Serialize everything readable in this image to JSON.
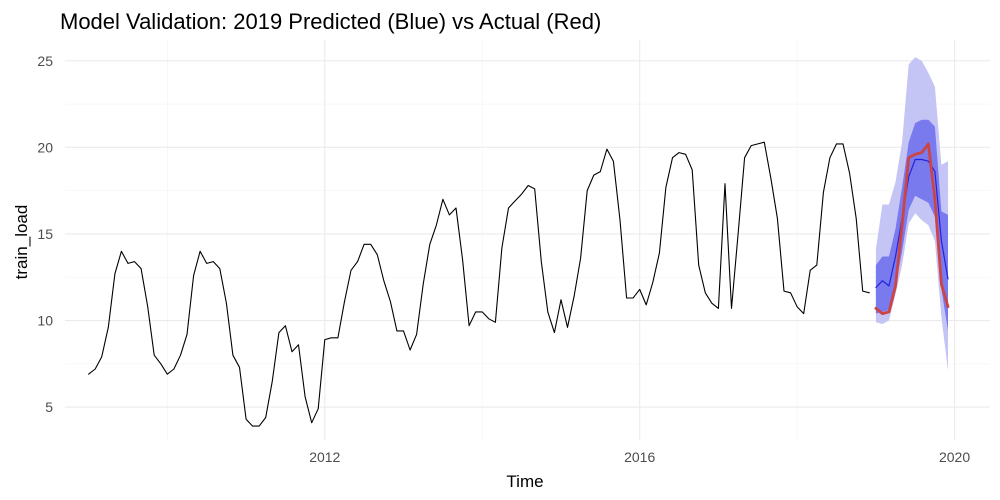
{
  "chart_data": {
    "type": "line",
    "title": "Model Validation: 2019 Predicted (Blue) vs Actual (Red)",
    "xlabel": "Time",
    "ylabel": "train_load",
    "xlim": [
      2008.7,
      2020.45
    ],
    "ylim": [
      3.1,
      26.2
    ],
    "x_ticks": [
      2012,
      2016,
      2020
    ],
    "y_ticks": [
      5,
      10,
      15,
      20,
      25
    ],
    "grid": true,
    "legend": "none",
    "colors": {
      "history": "#000000",
      "actual": "#cc4444",
      "forecast_line": "#2222dd",
      "band_80": "#7a7aef",
      "band_95": "#c4c4f5"
    },
    "series": [
      {
        "role": "history",
        "x_start": 2009.0,
        "step": 0.083333,
        "values": [
          6.9,
          7.2,
          7.9,
          9.6,
          12.7,
          14.0,
          13.3,
          13.4,
          13.0,
          10.8,
          8.0,
          7.5,
          6.9,
          7.2,
          8.0,
          9.2,
          12.6,
          14.0,
          13.3,
          13.4,
          13.0,
          11.0,
          8.0,
          7.3,
          4.3,
          3.9,
          3.9,
          4.4,
          6.5,
          9.3,
          9.7,
          8.2,
          8.6,
          5.6,
          4.1,
          4.9,
          8.9,
          9.0,
          9.0,
          11.1,
          12.9,
          13.4,
          14.4,
          14.4,
          13.8,
          12.3,
          11.1,
          9.4,
          9.4,
          8.3,
          9.2,
          12.1,
          14.4,
          15.5,
          17.0,
          16.1,
          16.5,
          13.5,
          9.7,
          10.5,
          10.5,
          10.1,
          9.9,
          14.2,
          16.5,
          16.9,
          17.3,
          17.8,
          17.6,
          13.4,
          10.5,
          9.3,
          11.2,
          9.6,
          11.4,
          13.6,
          17.5,
          18.4,
          18.6,
          19.9,
          19.2,
          15.8,
          11.3,
          11.3,
          11.8,
          10.9,
          12.2,
          13.9,
          17.7,
          19.4,
          19.7,
          19.6,
          18.7,
          13.2,
          11.6,
          11.0,
          10.7,
          17.9,
          10.7,
          15.0,
          19.4,
          20.1,
          20.2,
          20.3,
          18.2,
          15.9,
          11.7,
          11.6,
          10.8,
          10.4,
          12.9,
          13.2,
          17.4,
          19.4,
          20.2,
          20.2,
          18.5,
          15.9,
          11.7,
          11.6
        ]
      },
      {
        "role": "forecast",
        "x": [
          2019.0,
          2019.083,
          2019.167,
          2019.25,
          2019.333,
          2019.417,
          2019.5,
          2019.583,
          2019.667,
          2019.75,
          2019.833,
          2019.917
        ],
        "values": [
          11.9,
          12.3,
          12.0,
          13.7,
          15.9,
          18.3,
          19.3,
          19.3,
          19.2,
          18.6,
          14.6,
          12.4
        ],
        "lo80": [
          10.4,
          10.5,
          10.6,
          12.0,
          14.0,
          16.4,
          17.2,
          17.0,
          16.8,
          16.0,
          11.8,
          9.4
        ],
        "hi80": [
          13.2,
          13.7,
          13.7,
          15.3,
          17.7,
          20.3,
          21.4,
          21.6,
          21.6,
          21.2,
          16.3,
          16.1
        ],
        "lo95": [
          9.9,
          9.8,
          10.0,
          11.5,
          13.2,
          15.6,
          16.2,
          15.8,
          15.5,
          14.6,
          10.2,
          7.1
        ],
        "hi95": [
          14.1,
          16.7,
          16.7,
          18.0,
          20.3,
          24.8,
          25.2,
          25.0,
          24.3,
          23.5,
          19.0,
          19.2
        ]
      },
      {
        "role": "actual",
        "x": [
          2019.0,
          2019.083,
          2019.167,
          2019.25,
          2019.333,
          2019.417,
          2019.5,
          2019.583,
          2019.667,
          2019.75,
          2019.833,
          2019.917
        ],
        "values": [
          10.7,
          10.4,
          10.5,
          12.0,
          15.5,
          19.4,
          19.6,
          19.7,
          20.2,
          17.0,
          12.1,
          10.8
        ]
      }
    ]
  }
}
